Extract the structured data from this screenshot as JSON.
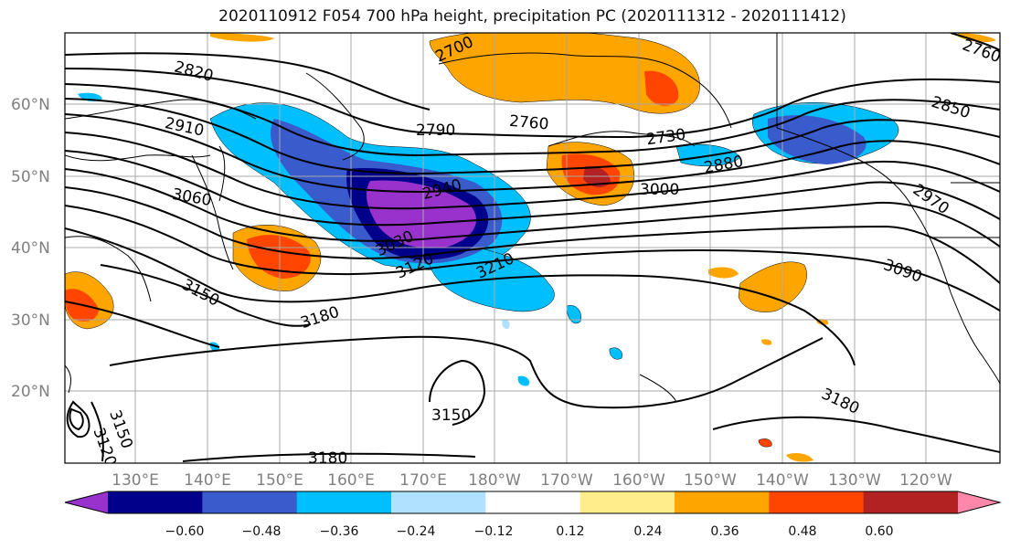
{
  "title": "2020110912 F054 700 hPa height, precipitation PC (2020111312 - 2020111412)",
  "map": {
    "latitude_labels": [
      "60°N",
      "50°N",
      "40°N",
      "30°N",
      "20°N"
    ],
    "longitude_labels": [
      "130°E",
      "140°E",
      "150°E",
      "160°E",
      "170°E",
      "180°W",
      "170°W",
      "160°W",
      "150°W",
      "140°W",
      "130°W",
      "120°W"
    ],
    "contour_labels": [
      "2820",
      "2910",
      "3060",
      "2790",
      "2760",
      "2730",
      "2700",
      "2880",
      "2850",
      "2940",
      "3000",
      "2970",
      "3030",
      "3120",
      "3210",
      "3150",
      "3180",
      "3090",
      "3180",
      "3150",
      "3180",
      "3150",
      "3120",
      "2760"
    ]
  },
  "colorbar": {
    "tick_labels": [
      "−0.60",
      "−0.48",
      "−0.36",
      "−0.24",
      "−0.12",
      "0.12",
      "0.24",
      "0.36",
      "0.48",
      "0.60"
    ],
    "colors": [
      "#9932CC",
      "#00008B",
      "#3A5BCC",
      "#00BFFF",
      "#B0E2FF",
      "#FFFFFF",
      "#FFEC8B",
      "#FFA500",
      "#FF4500",
      "#B22222",
      "#FF88AA"
    ]
  }
}
